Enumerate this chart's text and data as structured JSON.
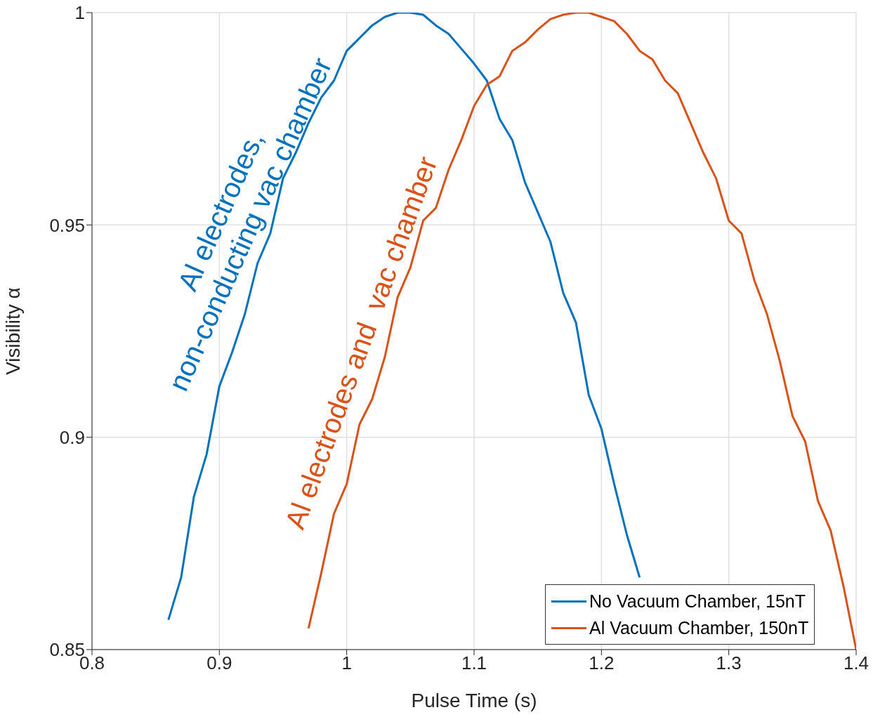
{
  "chart_data": {
    "type": "line",
    "xlabel": "Pulse Time (s)",
    "ylabel": "Visibility α",
    "xlim": [
      0.8,
      1.4
    ],
    "xticks": [
      0.8,
      0.9,
      1,
      1.1,
      1.2,
      1.3,
      1.4
    ],
    "ylim": [
      0.85,
      1
    ],
    "yticks": [
      0.85,
      0.9,
      0.95,
      1
    ],
    "grid": true,
    "legend": "bottom right",
    "line_style": "solid",
    "marker": "none",
    "series": [
      {
        "name": "No Vacuum Chamber, 15nT",
        "color": "#0072bd",
        "x": [
          0.86,
          0.87,
          0.88,
          0.89,
          0.9,
          0.91,
          0.92,
          0.93,
          0.94,
          0.95,
          0.96,
          0.97,
          0.98,
          0.99,
          1.0,
          1.01,
          1.02,
          1.03,
          1.04,
          1.05,
          1.06,
          1.07,
          1.08,
          1.09,
          1.1,
          1.11,
          1.12,
          1.13,
          1.14,
          1.15,
          1.16,
          1.17,
          1.18,
          1.19,
          1.2,
          1.21,
          1.22,
          1.23
        ],
        "values": [
          0.857,
          0.867,
          0.886,
          0.896,
          0.912,
          0.92,
          0.929,
          0.941,
          0.948,
          0.961,
          0.967,
          0.974,
          0.98,
          0.984,
          0.991,
          0.994,
          0.997,
          0.999,
          1.0,
          1.0,
          0.9995,
          0.997,
          0.995,
          0.9915,
          0.988,
          0.984,
          0.975,
          0.97,
          0.96,
          0.953,
          0.946,
          0.934,
          0.927,
          0.91,
          0.902,
          0.889,
          0.877,
          0.867
        ]
      },
      {
        "name": "Al Vacuum Chamber, 150nT",
        "color": "#d95319",
        "x": [
          0.97,
          0.98,
          0.99,
          1.0,
          1.01,
          1.02,
          1.03,
          1.04,
          1.05,
          1.06,
          1.07,
          1.08,
          1.09,
          1.1,
          1.11,
          1.12,
          1.13,
          1.14,
          1.15,
          1.16,
          1.17,
          1.18,
          1.19,
          1.2,
          1.21,
          1.22,
          1.23,
          1.24,
          1.25,
          1.26,
          1.27,
          1.28,
          1.29,
          1.3,
          1.31,
          1.32,
          1.33,
          1.34,
          1.35,
          1.36,
          1.37,
          1.38,
          1.39,
          1.4
        ],
        "values": [
          0.855,
          0.868,
          0.882,
          0.889,
          0.903,
          0.909,
          0.919,
          0.933,
          0.94,
          0.951,
          0.954,
          0.963,
          0.97,
          0.978,
          0.983,
          0.985,
          0.991,
          0.993,
          0.996,
          0.9985,
          0.9995,
          1.0,
          1.0,
          0.999,
          0.998,
          0.995,
          0.991,
          0.989,
          0.984,
          0.981,
          0.974,
          0.967,
          0.961,
          0.951,
          0.948,
          0.937,
          0.929,
          0.918,
          0.905,
          0.899,
          0.885,
          0.878,
          0.865,
          0.85
        ]
      }
    ],
    "annotations": [
      "Al electrodes,\nnon-conducting vac chamber",
      "Al electrodes and  vac chamber"
    ]
  }
}
